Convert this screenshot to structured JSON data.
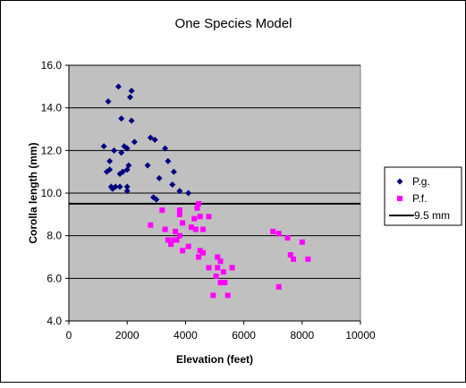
{
  "chart_data": {
    "type": "scatter",
    "title": "One Species Model",
    "xlabel": "Elevation (feet)",
    "ylabel": "Corolla length (mm)",
    "xlim": [
      0,
      10000
    ],
    "ylim": [
      4.0,
      16.0
    ],
    "xticks": [
      0,
      2000,
      4000,
      6000,
      8000,
      10000
    ],
    "yticks": [
      4.0,
      6.0,
      8.0,
      10.0,
      12.0,
      14.0,
      16.0
    ],
    "xtick_labels": [
      "0",
      "2000",
      "4000",
      "6000",
      "8000",
      "10000"
    ],
    "ytick_labels": [
      "4.0",
      "6.0",
      "8.0",
      "10.0",
      "12.0",
      "14.0",
      "16.0"
    ],
    "grid": "horizontal",
    "legend_position": "right",
    "background_color": "#c0c0c0",
    "series": [
      {
        "name": "P.g.",
        "marker": "diamond",
        "color": "#000080",
        "points": [
          [
            1200,
            12.2
          ],
          [
            1300,
            11.0
          ],
          [
            1350,
            14.3
          ],
          [
            1400,
            11.5
          ],
          [
            1400,
            11.1
          ],
          [
            1450,
            10.3
          ],
          [
            1500,
            10.2
          ],
          [
            1550,
            12.0
          ],
          [
            1600,
            10.3
          ],
          [
            1700,
            15.0
          ],
          [
            1750,
            10.3
          ],
          [
            1750,
            10.9
          ],
          [
            1800,
            13.5
          ],
          [
            1800,
            11.9
          ],
          [
            1850,
            11.0
          ],
          [
            1900,
            12.2
          ],
          [
            2000,
            11.1
          ],
          [
            2000,
            12.1
          ],
          [
            2000,
            10.3
          ],
          [
            2000,
            10.1
          ],
          [
            2050,
            11.3
          ],
          [
            2100,
            14.5
          ],
          [
            2150,
            14.8
          ],
          [
            2150,
            13.4
          ],
          [
            2250,
            12.4
          ],
          [
            2700,
            11.3
          ],
          [
            2800,
            12.6
          ],
          [
            2900,
            9.8
          ],
          [
            2950,
            12.5
          ],
          [
            3000,
            9.7
          ],
          [
            3100,
            10.7
          ],
          [
            3300,
            12.1
          ],
          [
            3400,
            11.5
          ],
          [
            3550,
            10.4
          ],
          [
            3600,
            11.0
          ],
          [
            3800,
            10.1
          ],
          [
            4100,
            10.0
          ]
        ]
      },
      {
        "name": "P.f.",
        "marker": "square",
        "color": "#ff00ff",
        "points": [
          [
            2800,
            8.5
          ],
          [
            3200,
            9.2
          ],
          [
            3300,
            8.3
          ],
          [
            3400,
            7.8
          ],
          [
            3500,
            7.6
          ],
          [
            3600,
            7.8
          ],
          [
            3650,
            8.2
          ],
          [
            3700,
            7.8
          ],
          [
            3800,
            9.2
          ],
          [
            3800,
            9.0
          ],
          [
            3800,
            8.0
          ],
          [
            3900,
            8.6
          ],
          [
            3900,
            7.3
          ],
          [
            4100,
            7.5
          ],
          [
            4200,
            8.4
          ],
          [
            4300,
            8.8
          ],
          [
            4350,
            8.3
          ],
          [
            4400,
            9.3
          ],
          [
            4450,
            9.5
          ],
          [
            4450,
            7.0
          ],
          [
            4500,
            8.9
          ],
          [
            4500,
            7.3
          ],
          [
            4600,
            7.2
          ],
          [
            4600,
            8.3
          ],
          [
            4800,
            8.9
          ],
          [
            4800,
            6.5
          ],
          [
            4950,
            5.2
          ],
          [
            5050,
            6.1
          ],
          [
            5100,
            7.0
          ],
          [
            5100,
            6.5
          ],
          [
            5200,
            6.8
          ],
          [
            5200,
            5.8
          ],
          [
            5300,
            6.3
          ],
          [
            5350,
            5.8
          ],
          [
            5450,
            5.2
          ],
          [
            5600,
            6.5
          ],
          [
            7000,
            8.2
          ],
          [
            7200,
            8.1
          ],
          [
            7200,
            5.6
          ],
          [
            7500,
            7.9
          ],
          [
            7600,
            7.1
          ],
          [
            7700,
            6.9
          ],
          [
            8000,
            7.7
          ],
          [
            8200,
            6.9
          ]
        ]
      },
      {
        "name": "9.5 mm",
        "marker": "line",
        "color": "#000000",
        "value": 9.5
      }
    ]
  }
}
